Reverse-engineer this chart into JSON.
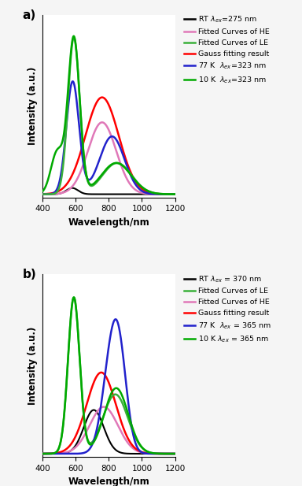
{
  "panel_a": {
    "title": "a)",
    "xlabel": "Wavelength/nm",
    "ylabel": "Intensity (a.u.)",
    "xlim": [
      400,
      1200
    ],
    "legend": [
      {
        "label": "RT $\\lambda_{ex}$=275 nm",
        "color": "black",
        "lw": 1.8
      },
      {
        "label": "Fitted Curves of HE",
        "color": "#e078b8",
        "lw": 1.8
      },
      {
        "label": "Fitted Curves of LE",
        "color": "#3ab03a",
        "lw": 1.8
      },
      {
        "label": "Gauss fitting result",
        "color": "red",
        "lw": 1.8
      },
      {
        "label": "77 K  $\\lambda_{ex}$=323 nm",
        "color": "#2222cc",
        "lw": 1.8
      },
      {
        "label": "10 K  $\\lambda_{ex}$=323 nm",
        "color": "#00aa00",
        "lw": 1.8
      }
    ]
  },
  "panel_b": {
    "title": "b)",
    "xlabel": "Wavelength/nm",
    "ylabel": "Intensity (a.u.)",
    "xlim": [
      400,
      1200
    ],
    "legend": [
      {
        "label": "RT $\\lambda_{ex}$ = 370 nm",
        "color": "black",
        "lw": 1.8
      },
      {
        "label": "Fitted Curves of LE",
        "color": "#3ab03a",
        "lw": 1.8
      },
      {
        "label": "Fitted Curves of HE",
        "color": "#e078b8",
        "lw": 1.8
      },
      {
        "label": "Gauss fitting result",
        "color": "red",
        "lw": 1.8
      },
      {
        "label": "77 K  $\\lambda_{ex}$ = 365 nm",
        "color": "#2222cc",
        "lw": 1.8
      },
      {
        "label": "10 K $\\lambda_{ex}$ = 365 nm",
        "color": "#00aa00",
        "lw": 1.8
      }
    ]
  },
  "bg_color": "#ffffff",
  "fig_bg": "#f5f5f5"
}
